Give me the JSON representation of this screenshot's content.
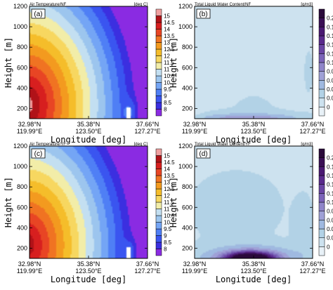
{
  "figure": {
    "panels": [
      {
        "tag": "(a)",
        "title": "Air Temperature/NF",
        "unit": "[deg C]",
        "variable": "temperature",
        "colorbar": [
          "8",
          "8.5",
          "9",
          "9.5",
          "10",
          "10.5",
          "11",
          "11.5",
          "12",
          "12.5",
          "13",
          "13.5",
          "14",
          "14.5",
          "15"
        ],
        "colors": [
          "#8a2be2",
          "#3b2fe0",
          "#3a55f0",
          "#4f7ff5",
          "#74a5f5",
          "#9cc5ee",
          "#c3dff1",
          "#f2eda8",
          "#f7d760",
          "#f5bd2a",
          "#f39a1f",
          "#f07322",
          "#e84524",
          "#d71f1f",
          "#b01218",
          "#f0a0a0"
        ]
      },
      {
        "tag": "(b)",
        "title": "Total Liquid Water Content/NF",
        "unit": "[g/m3]",
        "variable": "lwc",
        "colorbar": [
          "0",
          "0.02",
          "0.04",
          "0.06",
          "0.08",
          "0.1",
          "0.12",
          "0.14",
          "0.16",
          "0.18",
          "0.2"
        ],
        "colors": [
          "#e8f1f7",
          "#cde2ef",
          "#b2d2e6",
          "#9fb9e0",
          "#9fa0d6",
          "#8f85c9",
          "#7b63b8",
          "#6a45a3",
          "#5a2a8c",
          "#4a1972",
          "#3a0f55",
          "#2a0a3a"
        ]
      },
      {
        "tag": "(c)",
        "title": "Air Temperature/YF",
        "unit": "[deg C]",
        "variable": "temperature",
        "colorbar": [
          "8",
          "8.5",
          "9",
          "9.5",
          "10",
          "10.5",
          "11",
          "11.5",
          "12",
          "12.5",
          "13",
          "13.5",
          "14",
          "14.5",
          "15"
        ],
        "colors": [
          "#8a2be2",
          "#3b2fe0",
          "#3a55f0",
          "#4f7ff5",
          "#74a5f5",
          "#9cc5ee",
          "#c3dff1",
          "#f2eda8",
          "#f7d760",
          "#f5bd2a",
          "#f39a1f",
          "#f07322",
          "#e84524",
          "#d71f1f",
          "#b01218",
          "#f0a0a0"
        ]
      },
      {
        "tag": "(d)",
        "title": "Total Liquid Water Content/YF",
        "unit": "[g/m3]",
        "variable": "lwc",
        "colorbar": [
          "0",
          "0.02",
          "0.04",
          "0.06",
          "0.08",
          "0.1",
          "0.12",
          "0.14",
          "0.16",
          "0.18",
          "0.2"
        ],
        "colors": [
          "#e8f1f7",
          "#cde2ef",
          "#b2d2e6",
          "#9fb9e0",
          "#9fa0d6",
          "#8f85c9",
          "#7b63b8",
          "#6a45a3",
          "#5a2a8c",
          "#4a1972",
          "#3a0f55",
          "#2a0a3a"
        ]
      }
    ],
    "xlabel": "Longitude [deg]",
    "ylabel": "Height [m]",
    "xticks": [
      {
        "lat": "32.98°N",
        "lon": "119.99°E"
      },
      {
        "lat": "35.38°N",
        "lon": "123.50°E"
      },
      {
        "lat": "37.66°N",
        "lon": "127.27°E"
      }
    ],
    "yticks": [
      "200",
      "400",
      "600",
      "800",
      "1000",
      "1200"
    ]
  },
  "chart_data": [
    {
      "type": "heatmap",
      "title": "Air Temperature/NF",
      "panel": "(a)",
      "xlabel": "Longitude [deg]",
      "ylabel": "Height [m]",
      "ylim": [
        100,
        1200
      ],
      "x_tick_labels": [
        "32.98°N 119.99°E",
        "35.38°N 123.50°E",
        "37.66°N 127.27°E"
      ],
      "colorbar_unit": "[deg C]",
      "colorbar_levels": [
        8,
        8.5,
        9,
        9.5,
        10,
        10.5,
        11,
        11.5,
        12,
        12.5,
        13,
        13.5,
        14,
        14.5,
        15
      ],
      "value_range": [
        8,
        15.5
      ]
    },
    {
      "type": "heatmap",
      "title": "Total Liquid Water Content/NF",
      "panel": "(b)",
      "xlabel": "Longitude [deg]",
      "ylabel": "Height [m]",
      "ylim": [
        100,
        1200
      ],
      "x_tick_labels": [
        "32.98°N 119.99°E",
        "35.38°N 123.50°E",
        "37.66°N 127.27°E"
      ],
      "colorbar_unit": "[g/m3]",
      "colorbar_levels": [
        0,
        0.02,
        0.04,
        0.06,
        0.08,
        0.1,
        0.12,
        0.14,
        0.16,
        0.18,
        0.2
      ],
      "value_range": [
        0,
        0.06
      ]
    },
    {
      "type": "heatmap",
      "title": "Air Temperature/YF",
      "panel": "(c)",
      "xlabel": "Longitude [deg]",
      "ylabel": "Height [m]",
      "ylim": [
        100,
        1200
      ],
      "x_tick_labels": [
        "32.98°N 119.99°E",
        "35.38°N 123.50°E",
        "37.66°N 127.27°E"
      ],
      "colorbar_unit": "[deg C]",
      "colorbar_levels": [
        8,
        8.5,
        9,
        9.5,
        10,
        10.5,
        11,
        11.5,
        12,
        12.5,
        13,
        13.5,
        14,
        14.5,
        15
      ],
      "value_range": [
        8,
        15
      ]
    },
    {
      "type": "heatmap",
      "title": "Total Liquid Water Content/YF",
      "panel": "(d)",
      "xlabel": "Longitude [deg]",
      "ylabel": "Height [m]",
      "ylim": [
        100,
        1200
      ],
      "x_tick_labels": [
        "32.98°N 119.99°E",
        "35.38°N 123.50°E",
        "37.66°N 127.27°E"
      ],
      "colorbar_unit": "[g/m3]",
      "colorbar_levels": [
        0,
        0.02,
        0.04,
        0.06,
        0.08,
        0.1,
        0.12,
        0.14,
        0.16,
        0.18,
        0.2
      ],
      "value_range": [
        0,
        0.2
      ]
    }
  ]
}
